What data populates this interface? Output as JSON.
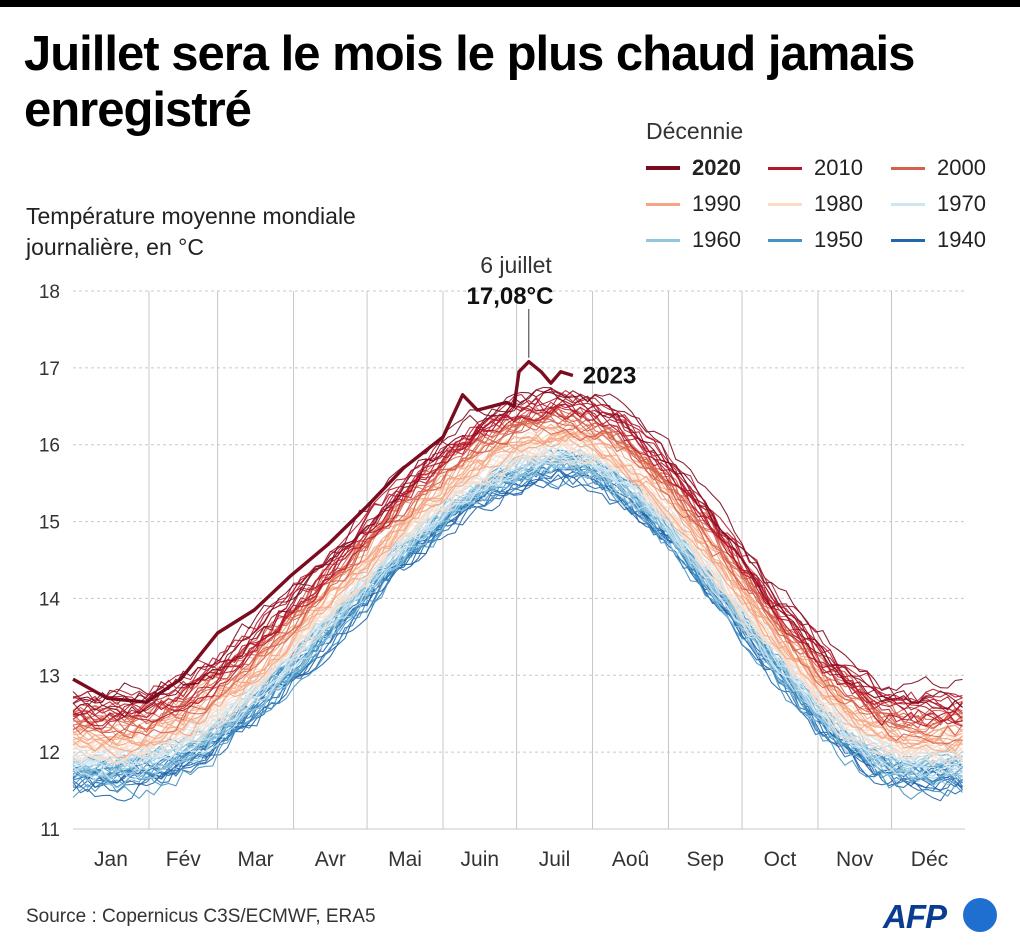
{
  "header": {
    "title": "Juillet sera le mois le plus chaud jamais enregistré",
    "subtitle_line1": "Température moyenne mondiale",
    "subtitle_line2": "journalière, en °C"
  },
  "legend": {
    "title": "Décennie",
    "items": [
      {
        "label": "2020",
        "color": "#7b0b1e",
        "bold": true
      },
      {
        "label": "2010",
        "color": "#b2182b",
        "bold": false
      },
      {
        "label": "2000",
        "color": "#d6604d",
        "bold": false
      },
      {
        "label": "1990",
        "color": "#f4a582",
        "bold": false
      },
      {
        "label": "1980",
        "color": "#fddbc7",
        "bold": false
      },
      {
        "label": "1970",
        "color": "#d1e5f0",
        "bold": false
      },
      {
        "label": "1960",
        "color": "#92c5de",
        "bold": false
      },
      {
        "label": "1950",
        "color": "#4393c3",
        "bold": false
      },
      {
        "label": "1940",
        "color": "#2166ac",
        "bold": false
      }
    ]
  },
  "annotation": {
    "date": "6 juillet",
    "value": "17,08°C",
    "series_label": "2023"
  },
  "chart_data": {
    "type": "line",
    "title": "Juillet sera le mois le plus chaud jamais enregistré",
    "ylabel": "Température moyenne mondiale journalière, en °C",
    "xlabel": "",
    "ylim": [
      11,
      18
    ],
    "yticks": [
      11,
      12,
      13,
      14,
      15,
      16,
      17,
      18
    ],
    "xlim": [
      1,
      365
    ],
    "x_categories": [
      "Jan",
      "Fév",
      "Mar",
      "Avr",
      "Mai",
      "Juin",
      "Juil",
      "Aoû",
      "Sep",
      "Oct",
      "Nov",
      "Déc"
    ],
    "grid": {
      "vertical_month_lines": true,
      "horizontal_dashed": true
    },
    "decade_bands": [
      {
        "decade": "2020",
        "color": "#7b0b1e",
        "lines": 3,
        "annual_min": 12.7,
        "annual_max": 16.75
      },
      {
        "decade": "2010",
        "color": "#b2182b",
        "lines": 10,
        "annual_min": 12.6,
        "annual_max": 16.55
      },
      {
        "decade": "2000",
        "color": "#d6604d",
        "lines": 10,
        "annual_min": 12.4,
        "annual_max": 16.35
      },
      {
        "decade": "1990",
        "color": "#f4a582",
        "lines": 10,
        "annual_min": 12.2,
        "annual_max": 16.15
      },
      {
        "decade": "1980",
        "color": "#fddbc7",
        "lines": 10,
        "annual_min": 12.05,
        "annual_max": 16.0
      },
      {
        "decade": "1970",
        "color": "#d1e5f0",
        "lines": 10,
        "annual_min": 11.9,
        "annual_max": 15.85
      },
      {
        "decade": "1960",
        "color": "#92c5de",
        "lines": 10,
        "annual_min": 11.8,
        "annual_max": 15.75
      },
      {
        "decade": "1950",
        "color": "#4393c3",
        "lines": 10,
        "annual_min": 11.7,
        "annual_max": 15.7
      },
      {
        "decade": "1940",
        "color": "#2166ac",
        "lines": 10,
        "annual_min": 11.65,
        "annual_max": 15.65
      }
    ],
    "highlight_series": {
      "name": "2023",
      "color": "#7b0b1e",
      "points": [
        [
          1,
          12.95
        ],
        [
          15,
          12.7
        ],
        [
          31,
          12.65
        ],
        [
          45,
          12.95
        ],
        [
          60,
          13.55
        ],
        [
          75,
          13.85
        ],
        [
          90,
          14.3
        ],
        [
          105,
          14.7
        ],
        [
          121,
          15.2
        ],
        [
          136,
          15.7
        ],
        [
          152,
          16.1
        ],
        [
          160,
          16.65
        ],
        [
          166,
          16.45
        ],
        [
          172,
          16.5
        ],
        [
          178,
          16.55
        ],
        [
          181,
          16.5
        ],
        [
          183,
          16.95
        ],
        [
          187,
          17.08
        ],
        [
          192,
          16.95
        ],
        [
          196,
          16.8
        ],
        [
          200,
          16.95
        ],
        [
          205,
          16.9
        ]
      ],
      "peak": {
        "date": "6 juillet",
        "x": 187,
        "value": 17.08
      }
    }
  },
  "footer": {
    "source": "Source : Copernicus C3S/ECMWF, ERA5",
    "logo": "AFP"
  }
}
